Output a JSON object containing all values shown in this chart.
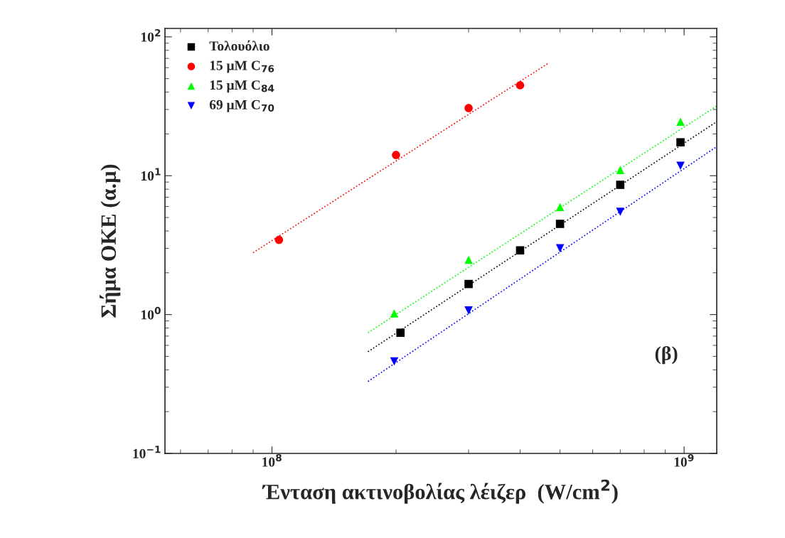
{
  "chart_data": {
    "type": "scatter",
    "xlabel": "Ένταση ακτινοβολίας λέιζερ  (W/cm$^{2}$)",
    "ylabel": "Σήμα OKE (α.μ)",
    "log": "xy",
    "grid": false,
    "legend": "top left",
    "xlim": [
      55000000.0,
      1200000000.0
    ],
    "ylim": [
      0.1,
      115
    ],
    "xticks": [
      {
        "value": 100000000.0,
        "label": "10$^{8}$"
      },
      {
        "value": 1000000000.0,
        "label": "10$^{9}$"
      }
    ],
    "yticks": [
      {
        "value": 0.1,
        "label": "10$^{−1}$"
      },
      {
        "value": 1,
        "label": "10$^{0}$"
      },
      {
        "value": 10,
        "label": "10$^{1}$"
      },
      {
        "value": 100,
        "label": "10$^{2}$"
      }
    ],
    "annotations": [
      "(β)"
    ],
    "series": [
      {
        "name": "Τολουόλιο",
        "marker": "square",
        "color": "#000000",
        "x": [
          205000000.0,
          300000000.0,
          400000000.0,
          500000000.0,
          700000000.0,
          980000000.0
        ],
        "values": [
          0.74,
          1.66,
          2.9,
          4.5,
          8.6,
          17.4
        ]
      },
      {
        "name": "15 μM C$_{76}$",
        "marker": "circle",
        "color": "#ff0000",
        "x": [
          104000000.0,
          200000000.0,
          300000000.0,
          400000000.0
        ],
        "values": [
          3.45,
          14.1,
          30.7,
          44.8
        ]
      },
      {
        "name": "15 μM C$_{84}$",
        "marker": "triangle",
        "color": "#00ff00",
        "x": [
          198000000.0,
          300000000.0,
          500000000.0,
          700000000.0,
          980000000.0
        ],
        "values": [
          1.02,
          2.48,
          5.95,
          11,
          24.5
        ]
      },
      {
        "name": "69 μM C$_{70}$",
        "marker": "triangle_down",
        "color": "#0000ff",
        "x": [
          198000000.0,
          300000000.0,
          500000000.0,
          700000000.0,
          980000000.0
        ],
        "values": [
          0.46,
          1.07,
          3.0,
          5.5,
          11.8
        ]
      },
      {
        "type": "line",
        "line_style": "dotted",
        "color": "#000000",
        "x": [
          171000000.0,
          1200000000.0
        ],
        "values": [
          0.54,
          24.5
        ]
      },
      {
        "type": "line",
        "line_style": "dotted",
        "color": "#ff0000",
        "x": [
          90000000.0,
          470000000.0
        ],
        "values": [
          2.79,
          65
        ]
      },
      {
        "type": "line",
        "line_style": "dotted",
        "color": "#00ff00",
        "x": [
          171000000.0,
          1200000000.0
        ],
        "values": [
          0.74,
          31.8
        ]
      },
      {
        "type": "line",
        "line_style": "dotted",
        "color": "#0000ff",
        "x": [
          171000000.0,
          1200000000.0
        ],
        "values": [
          0.33,
          16.2
        ]
      }
    ]
  }
}
